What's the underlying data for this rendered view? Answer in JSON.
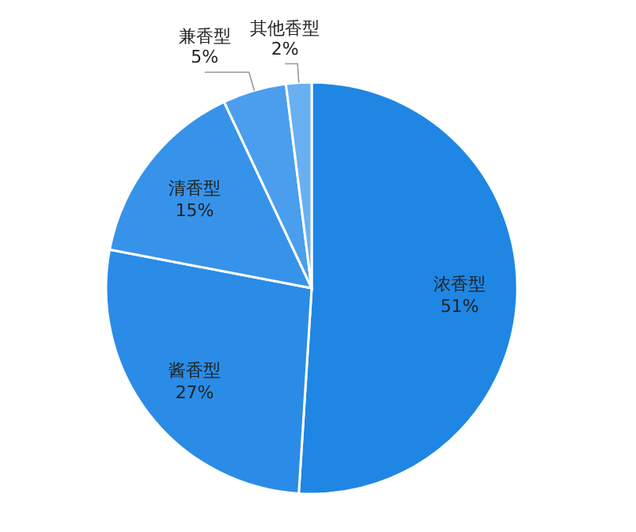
{
  "chart_data": {
    "type": "pie",
    "categories": [
      "浓香型",
      "酱香型",
      "清香型",
      "兼香型",
      "其他香型"
    ],
    "values": [
      51,
      27,
      15,
      5,
      2
    ],
    "value_labels": [
      "51%",
      "27%",
      "15%",
      "5%",
      "2%"
    ],
    "colors": [
      "#1f86e4",
      "#2a8ce6",
      "#3793e9",
      "#4a9eed",
      "#68b0f1"
    ]
  }
}
